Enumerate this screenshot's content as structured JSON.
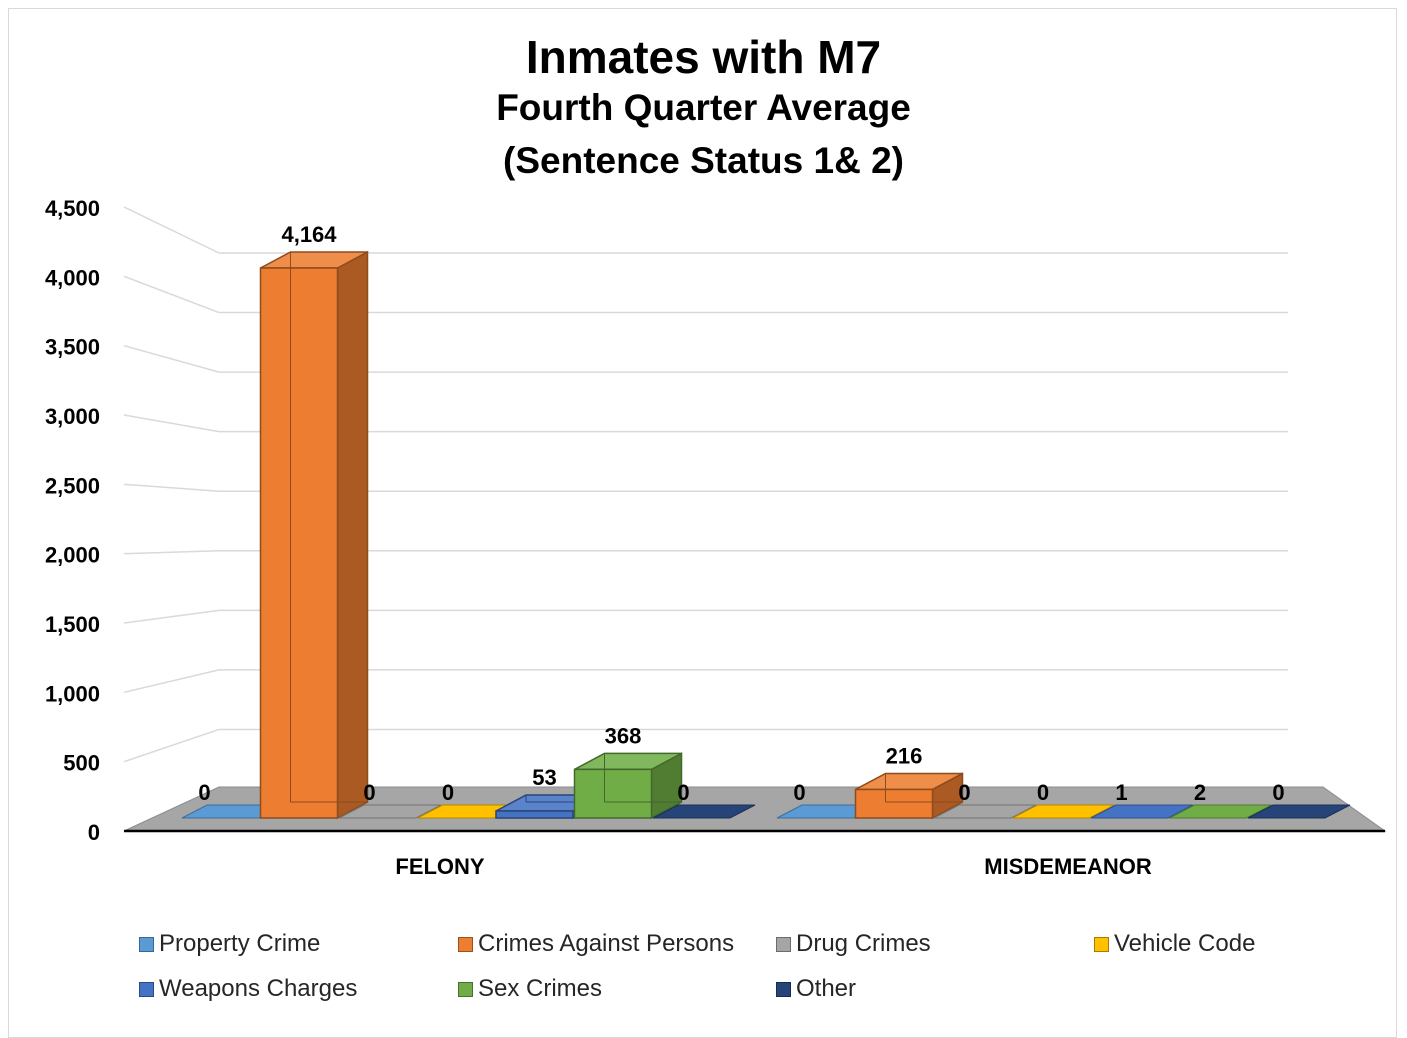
{
  "chart_data": {
    "type": "bar",
    "title": "Inmates with M7",
    "subtitle_lines": [
      "Fourth Quarter Average",
      "(Sentence Status 1& 2)"
    ],
    "categories": [
      "FELONY",
      "MISDEMEANOR"
    ],
    "series": [
      {
        "name": "Property Crime",
        "values": [
          0,
          0
        ],
        "color": "#5b9bd5",
        "labels": [
          "0",
          "0"
        ]
      },
      {
        "name": "Crimes Against Persons",
        "values": [
          4164,
          216
        ],
        "color": "#ed7d31",
        "labels": [
          "4,164",
          "216"
        ]
      },
      {
        "name": "Drug Crimes",
        "values": [
          0,
          0
        ],
        "color": "#a5a5a5",
        "labels": [
          "0",
          "0"
        ]
      },
      {
        "name": "Vehicle Code",
        "values": [
          0,
          0
        ],
        "color": "#ffc000",
        "labels": [
          "0",
          "0"
        ]
      },
      {
        "name": "Weapons Charges",
        "values": [
          53,
          1
        ],
        "color": "#4472c4",
        "labels": [
          "53",
          "1"
        ]
      },
      {
        "name": "Sex Crimes",
        "values": [
          368,
          2
        ],
        "color": "#70ad47",
        "labels": [
          "368",
          "2"
        ]
      },
      {
        "name": "Other",
        "values": [
          0,
          0
        ],
        "color": "#264478",
        "labels": [
          "0",
          "0"
        ]
      }
    ],
    "y_ticks": [
      "0",
      "500",
      "1,000",
      "1,500",
      "2,000",
      "2,500",
      "3,000",
      "3,500",
      "4,000",
      "4,500"
    ],
    "ylim": [
      0,
      4500
    ],
    "xlabel": "",
    "ylabel": "",
    "grid": true,
    "legend_position": "bottom",
    "style": "3d-clustered-column"
  }
}
